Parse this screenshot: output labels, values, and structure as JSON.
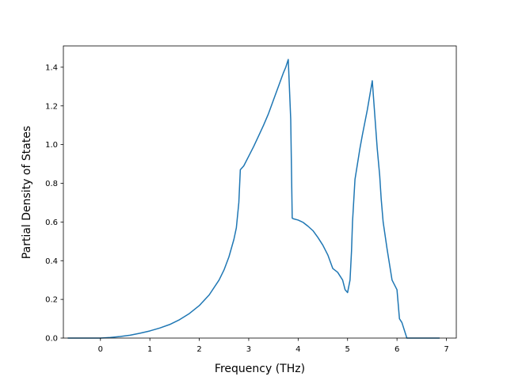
{
  "chart_data": {
    "type": "line",
    "xlabel": "Frequency (THz)",
    "ylabel": "Partial Density of States",
    "xlim": [
      -0.75,
      7.2
    ],
    "ylim": [
      0.0,
      1.51
    ],
    "xticks": [
      "0",
      "1",
      "2",
      "3",
      "4",
      "5",
      "6",
      "7"
    ],
    "yticks": [
      "0.0",
      "0.2",
      "0.4",
      "0.6",
      "0.8",
      "1.0",
      "1.2",
      "1.4"
    ],
    "grid": false,
    "legend": "none",
    "line_color": "#1f77b4",
    "series": [
      {
        "x": [
          -0.65,
          -0.3,
          0.0,
          0.2,
          0.4,
          0.6,
          0.8,
          1.0,
          1.2,
          1.4,
          1.6,
          1.8,
          2.0,
          2.2,
          2.4,
          2.5,
          2.6,
          2.7,
          2.75,
          2.8,
          2.83,
          2.9,
          3.0,
          3.1,
          3.2,
          3.3,
          3.4,
          3.5,
          3.6,
          3.7,
          3.75,
          3.8,
          3.85,
          3.88,
          3.9,
          4.0,
          4.1,
          4.2,
          4.3,
          4.4,
          4.5,
          4.6,
          4.7,
          4.8,
          4.9,
          4.95,
          5.0,
          5.05,
          5.08,
          5.1,
          5.15,
          5.2,
          5.25,
          5.3,
          5.4,
          5.5,
          5.6,
          5.65,
          5.68,
          5.72,
          5.8,
          5.9,
          6.0,
          6.05,
          6.1,
          6.15,
          6.2,
          6.3,
          6.5,
          6.85
        ],
        "y": [
          0.0,
          0.0,
          0.0,
          0.003,
          0.008,
          0.015,
          0.025,
          0.037,
          0.052,
          0.07,
          0.095,
          0.127,
          0.168,
          0.223,
          0.3,
          0.352,
          0.42,
          0.51,
          0.57,
          0.7,
          0.87,
          0.89,
          0.94,
          0.99,
          1.045,
          1.1,
          1.16,
          1.23,
          1.3,
          1.37,
          1.4,
          1.44,
          1.13,
          0.62,
          0.617,
          0.61,
          0.598,
          0.578,
          0.555,
          0.52,
          0.48,
          0.43,
          0.36,
          0.34,
          0.3,
          0.25,
          0.235,
          0.3,
          0.45,
          0.6,
          0.82,
          0.9,
          0.98,
          1.05,
          1.18,
          1.33,
          0.98,
          0.84,
          0.72,
          0.6,
          0.46,
          0.3,
          0.25,
          0.1,
          0.08,
          0.04,
          0.0,
          0.0,
          0.0,
          0.0
        ]
      }
    ]
  }
}
